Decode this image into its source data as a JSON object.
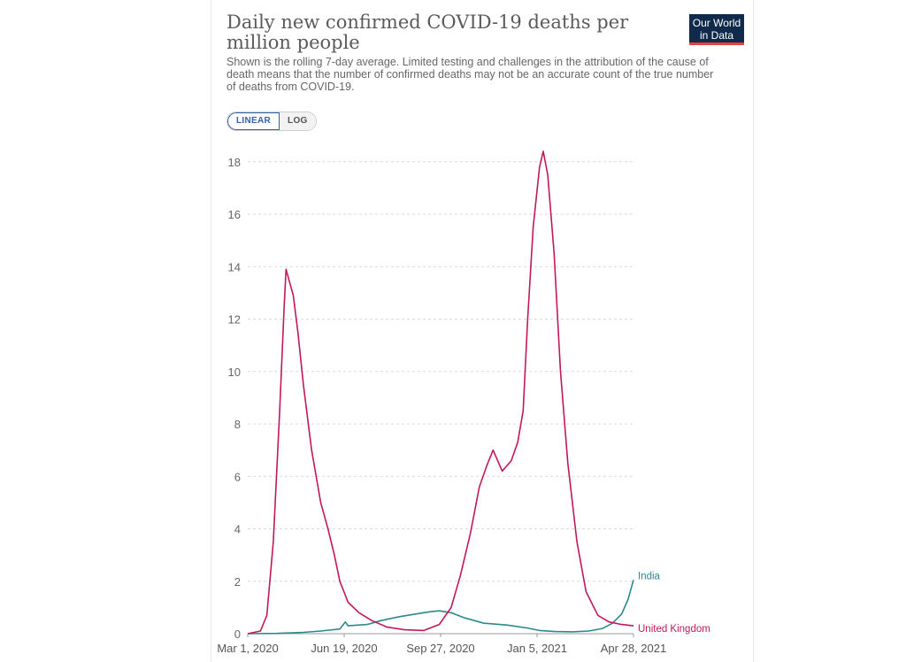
{
  "header": {
    "title": "Daily new confirmed COVID-19 deaths per million people",
    "subtitle": "Shown is the rolling 7-day average. Limited testing and challenges in the attribution of the cause of death means that the number of confirmed deaths may not be an accurate count of the true number of deaths from COVID-19.",
    "logo_line1": "Our World",
    "logo_line2": "in Data"
  },
  "controls": {
    "linear_label": "LINEAR",
    "log_label": "LOG",
    "selected": "LINEAR"
  },
  "colors": {
    "uk": "#c2185b",
    "india": "#2a8a8a",
    "logo_bg": "#102a4b",
    "logo_accent": "#e8413d",
    "grid": "#d9d9d9"
  },
  "chart_data": {
    "type": "line",
    "title": "Daily new confirmed COVID-19 deaths per million people",
    "xlabel": "",
    "ylabel": "",
    "x_tick_labels": [
      "Mar 1, 2020",
      "Jun 19, 2020",
      "Sep 27, 2020",
      "Jan 5, 2021",
      "Apr 28, 2021"
    ],
    "y_ticks": [
      0,
      2,
      4,
      6,
      8,
      10,
      12,
      14,
      16,
      18
    ],
    "ylim": [
      0,
      18.5
    ],
    "xlim": [
      "2020-03-01",
      "2021-04-28"
    ],
    "grid": true,
    "legend": "inline-end-labels",
    "series": [
      {
        "name": "India",
        "points": [
          [
            "2020-03-01",
            0
          ],
          [
            "2020-04-01",
            0.01
          ],
          [
            "2020-05-01",
            0.05
          ],
          [
            "2020-05-20",
            0.1
          ],
          [
            "2020-06-10",
            0.18
          ],
          [
            "2020-06-16",
            0.45
          ],
          [
            "2020-06-19",
            0.3
          ],
          [
            "2020-07-10",
            0.35
          ],
          [
            "2020-07-25",
            0.5
          ],
          [
            "2020-08-15",
            0.65
          ],
          [
            "2020-09-10",
            0.8
          ],
          [
            "2020-09-20",
            0.85
          ],
          [
            "2020-09-27",
            0.87
          ],
          [
            "2020-10-10",
            0.8
          ],
          [
            "2020-10-25",
            0.6
          ],
          [
            "2020-11-15",
            0.4
          ],
          [
            "2020-12-10",
            0.33
          ],
          [
            "2021-01-01",
            0.22
          ],
          [
            "2021-01-15",
            0.12
          ],
          [
            "2021-02-01",
            0.08
          ],
          [
            "2021-02-20",
            0.07
          ],
          [
            "2021-03-10",
            0.1
          ],
          [
            "2021-03-25",
            0.2
          ],
          [
            "2021-04-05",
            0.4
          ],
          [
            "2021-04-15",
            0.75
          ],
          [
            "2021-04-22",
            1.3
          ],
          [
            "2021-04-28",
            2.05
          ]
        ]
      },
      {
        "name": "United Kingdom",
        "points": [
          [
            "2020-03-01",
            0
          ],
          [
            "2020-03-15",
            0.1
          ],
          [
            "2020-03-22",
            0.7
          ],
          [
            "2020-03-29",
            3.5
          ],
          [
            "2020-04-05",
            8.5
          ],
          [
            "2020-04-10",
            12.5
          ],
          [
            "2020-04-12",
            13.9
          ],
          [
            "2020-04-16",
            13.4
          ],
          [
            "2020-04-20",
            12.9
          ],
          [
            "2020-04-25",
            11.5
          ],
          [
            "2020-05-01",
            9.5
          ],
          [
            "2020-05-10",
            7.0
          ],
          [
            "2020-05-20",
            5.0
          ],
          [
            "2020-05-28",
            4.0
          ],
          [
            "2020-06-04",
            3.0
          ],
          [
            "2020-06-10",
            2.0
          ],
          [
            "2020-06-19",
            1.2
          ],
          [
            "2020-07-01",
            0.8
          ],
          [
            "2020-07-15",
            0.5
          ],
          [
            "2020-08-01",
            0.25
          ],
          [
            "2020-08-20",
            0.15
          ],
          [
            "2020-09-10",
            0.12
          ],
          [
            "2020-09-27",
            0.35
          ],
          [
            "2020-10-10",
            1.0
          ],
          [
            "2020-10-20",
            2.2
          ],
          [
            "2020-10-31",
            3.8
          ],
          [
            "2020-11-10",
            5.6
          ],
          [
            "2020-11-18",
            6.4
          ],
          [
            "2020-11-25",
            7.0
          ],
          [
            "2020-12-05",
            6.2
          ],
          [
            "2020-12-15",
            6.6
          ],
          [
            "2020-12-22",
            7.3
          ],
          [
            "2020-12-28",
            8.5
          ],
          [
            "2021-01-02",
            12.0
          ],
          [
            "2021-01-08",
            15.5
          ],
          [
            "2021-01-15",
            17.8
          ],
          [
            "2021-01-19",
            18.4
          ],
          [
            "2021-01-24",
            17.5
          ],
          [
            "2021-01-31",
            14.5
          ],
          [
            "2021-02-07",
            10.0
          ],
          [
            "2021-02-15",
            6.5
          ],
          [
            "2021-02-25",
            3.5
          ],
          [
            "2021-03-07",
            1.6
          ],
          [
            "2021-03-20",
            0.7
          ],
          [
            "2021-04-01",
            0.45
          ],
          [
            "2021-04-15",
            0.35
          ],
          [
            "2021-04-28",
            0.3
          ]
        ]
      }
    ]
  }
}
